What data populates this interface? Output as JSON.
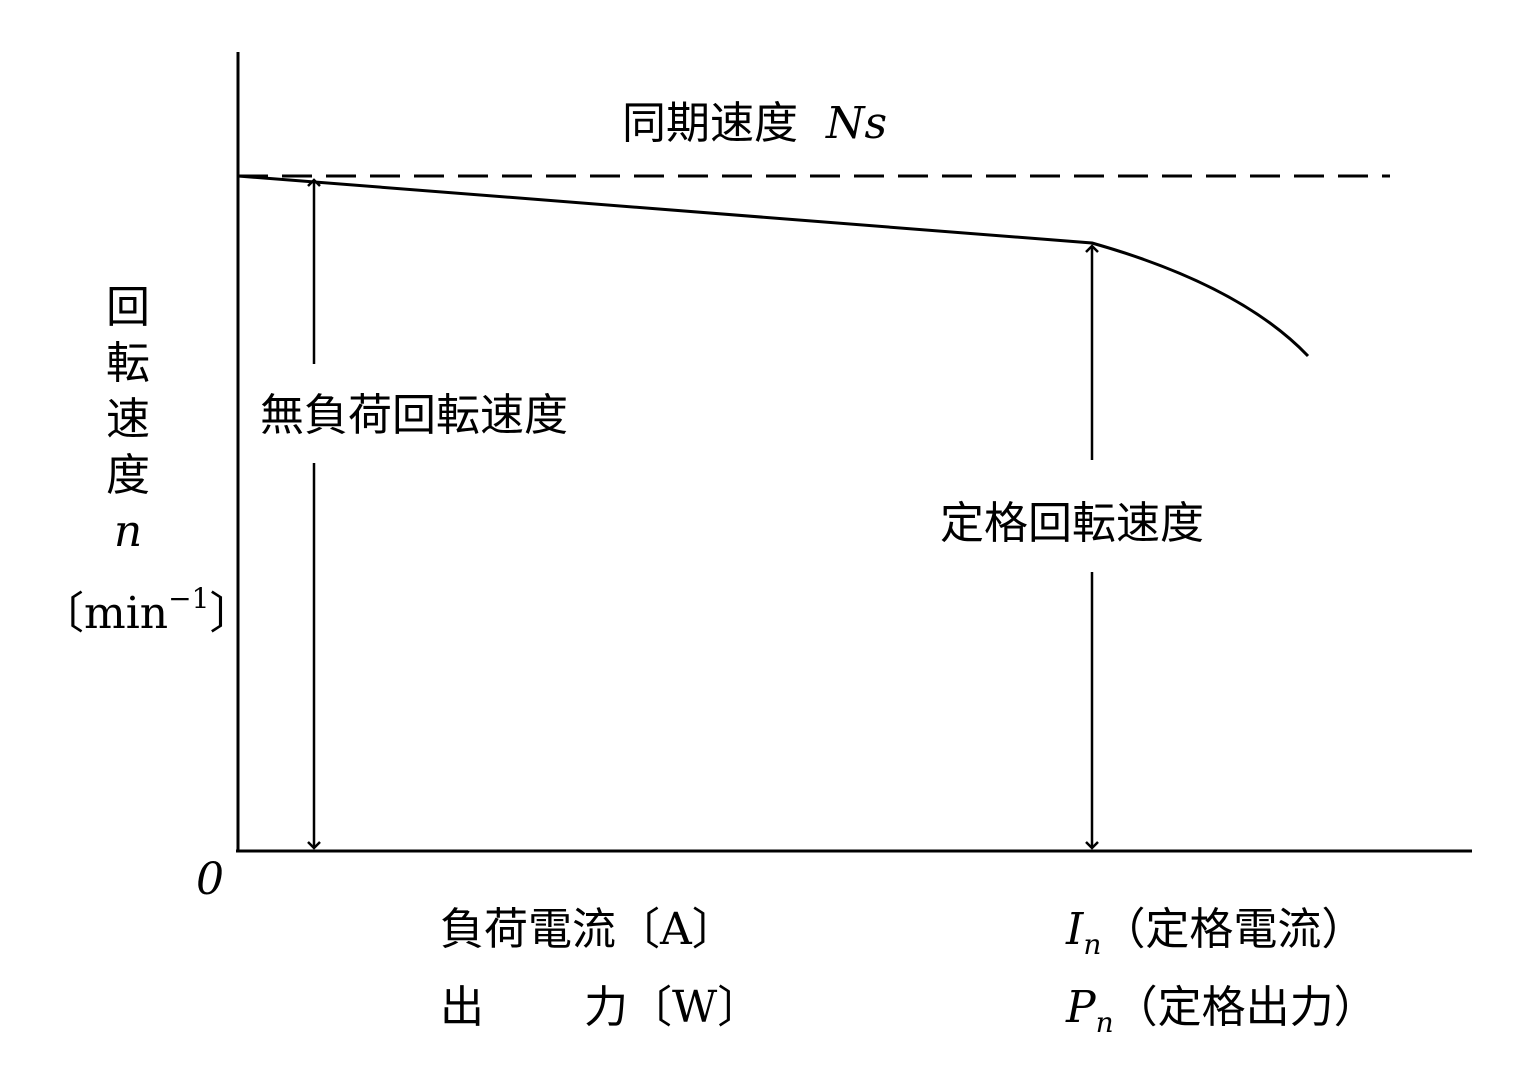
{
  "diagram": {
    "sync_speed_label": "同期速度",
    "sync_speed_symbol": "Ns",
    "y_axis_chars": [
      "回",
      "転",
      "速",
      "度"
    ],
    "y_axis_symbol": "n",
    "y_axis_unit_open": "〔min",
    "y_axis_unit_exp": "−1",
    "y_axis_unit_close": "〕",
    "origin_label": "0",
    "no_load_speed_label": "無負荷回転速度",
    "rated_speed_label": "定格回転速度",
    "x_label_current": "負荷電流〔A〕",
    "x_label_output_a": "出",
    "x_label_output_b": "力〔W〕",
    "rated_current_symbol": "I",
    "rated_current_sub": "n",
    "rated_current_text": "（定格電流）",
    "rated_output_symbol": "P",
    "rated_output_sub": "n",
    "rated_output_text": "（定格出力）"
  }
}
